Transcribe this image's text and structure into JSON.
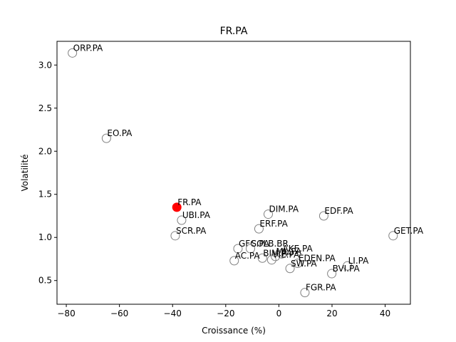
{
  "chart_data": {
    "type": "scatter",
    "title": "FR.PA",
    "xlabel": "Croissance (%)",
    "ylabel": "Volatilité",
    "xlim": [
      -83.5,
      49.5
    ],
    "ylim": [
      0.225,
      3.275
    ],
    "xticks": [
      -80,
      -60,
      -40,
      -20,
      0,
      20,
      40
    ],
    "yticks": [
      0.5,
      1.0,
      1.5,
      2.0,
      2.5,
      3.0
    ],
    "grid": false,
    "colors": {
      "point_edge": "#808080",
      "highlight": "#ff0000"
    },
    "points": [
      {
        "label": "ORP.PA",
        "x": -77.7,
        "y": 3.14
      },
      {
        "label": "EO.PA",
        "x": -64.9,
        "y": 2.15
      },
      {
        "label": "FR.PA",
        "x": -38.4,
        "y": 1.35,
        "highlight": true
      },
      {
        "label": "UBI.PA",
        "x": -36.6,
        "y": 1.2
      },
      {
        "label": "SCR.PA",
        "x": -39.0,
        "y": 1.02
      },
      {
        "label": "DIM.PA",
        "x": -4.0,
        "y": 1.27
      },
      {
        "label": "EDF.PA",
        "x": 16.9,
        "y": 1.25
      },
      {
        "label": "ERF.PA",
        "x": -7.5,
        "y": 1.1
      },
      {
        "label": "GET.PA",
        "x": 43.0,
        "y": 1.02
      },
      {
        "label": "GFC.PA",
        "x": -15.4,
        "y": 0.87
      },
      {
        "label": "SOLB.BR",
        "x": -10.7,
        "y": 0.87
      },
      {
        "label": "AKE.PA",
        "x": 1.1,
        "y": 0.81
      },
      {
        "label": "BIM.PA",
        "x": -6.2,
        "y": 0.76
      },
      {
        "label": "ML.PA",
        "x": -1.3,
        "y": 0.78
      },
      {
        "label": "VIE.PA",
        "x": -2.7,
        "y": 0.74
      },
      {
        "label": "AC.PA",
        "x": -16.8,
        "y": 0.73
      },
      {
        "label": "EDEN.PA",
        "x": 7.1,
        "y": 0.7
      },
      {
        "label": "LI.PA",
        "x": 25.8,
        "y": 0.67
      },
      {
        "label": "SW.PA",
        "x": 4.2,
        "y": 0.64
      },
      {
        "label": "BVI.PA",
        "x": 19.9,
        "y": 0.58
      },
      {
        "label": "FGR.PA",
        "x": 9.8,
        "y": 0.36
      }
    ]
  }
}
